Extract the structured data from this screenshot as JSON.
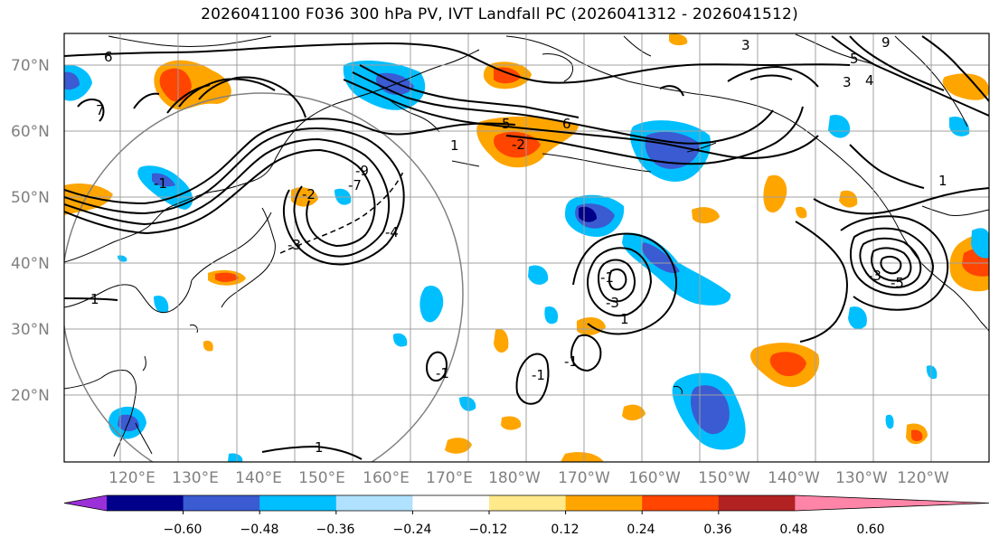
{
  "title": "2026041100 F036 300 hPa PV, IVT Landfall PC (2026041312 - 2026041512)",
  "lat_labels": [
    "70°N",
    "60°N",
    "50°N",
    "40°N",
    "30°N",
    "20°N"
  ],
  "lon_labels": [
    "120°E",
    "130°E",
    "140°E",
    "150°E",
    "160°E",
    "170°E",
    "180°W",
    "170°W",
    "160°W",
    "150°W",
    "140°W",
    "130°W",
    "120°W"
  ],
  "colorbar": {
    "tick_labels": [
      "−0.60",
      "−0.48",
      "−0.36",
      "−0.24",
      "−0.12",
      "0.12",
      "0.24",
      "0.36",
      "0.48",
      "0.60"
    ],
    "colors": [
      "#9b30d9",
      "#00008b",
      "#3a5bd1",
      "#00bfff",
      "#b0e2ff",
      "#ffffff",
      "#ffe98a",
      "#ffa500",
      "#ff4500",
      "#b22222",
      "#ff85a8"
    ]
  },
  "contour_labels": [
    "6",
    "7",
    "1",
    "-2",
    "3",
    "5",
    "-9",
    "-7",
    "-4",
    "-3",
    "-2",
    "-1",
    "1",
    "-3",
    "-1",
    "1",
    "-1",
    "-5",
    "-3",
    "1",
    "-1",
    "-1",
    "1",
    "5",
    "3",
    "9",
    "4",
    "6"
  ],
  "colors": {
    "coast": "#000000",
    "grid": "#a0a0a0",
    "range_ring": "#808080",
    "contour": "#000000"
  }
}
